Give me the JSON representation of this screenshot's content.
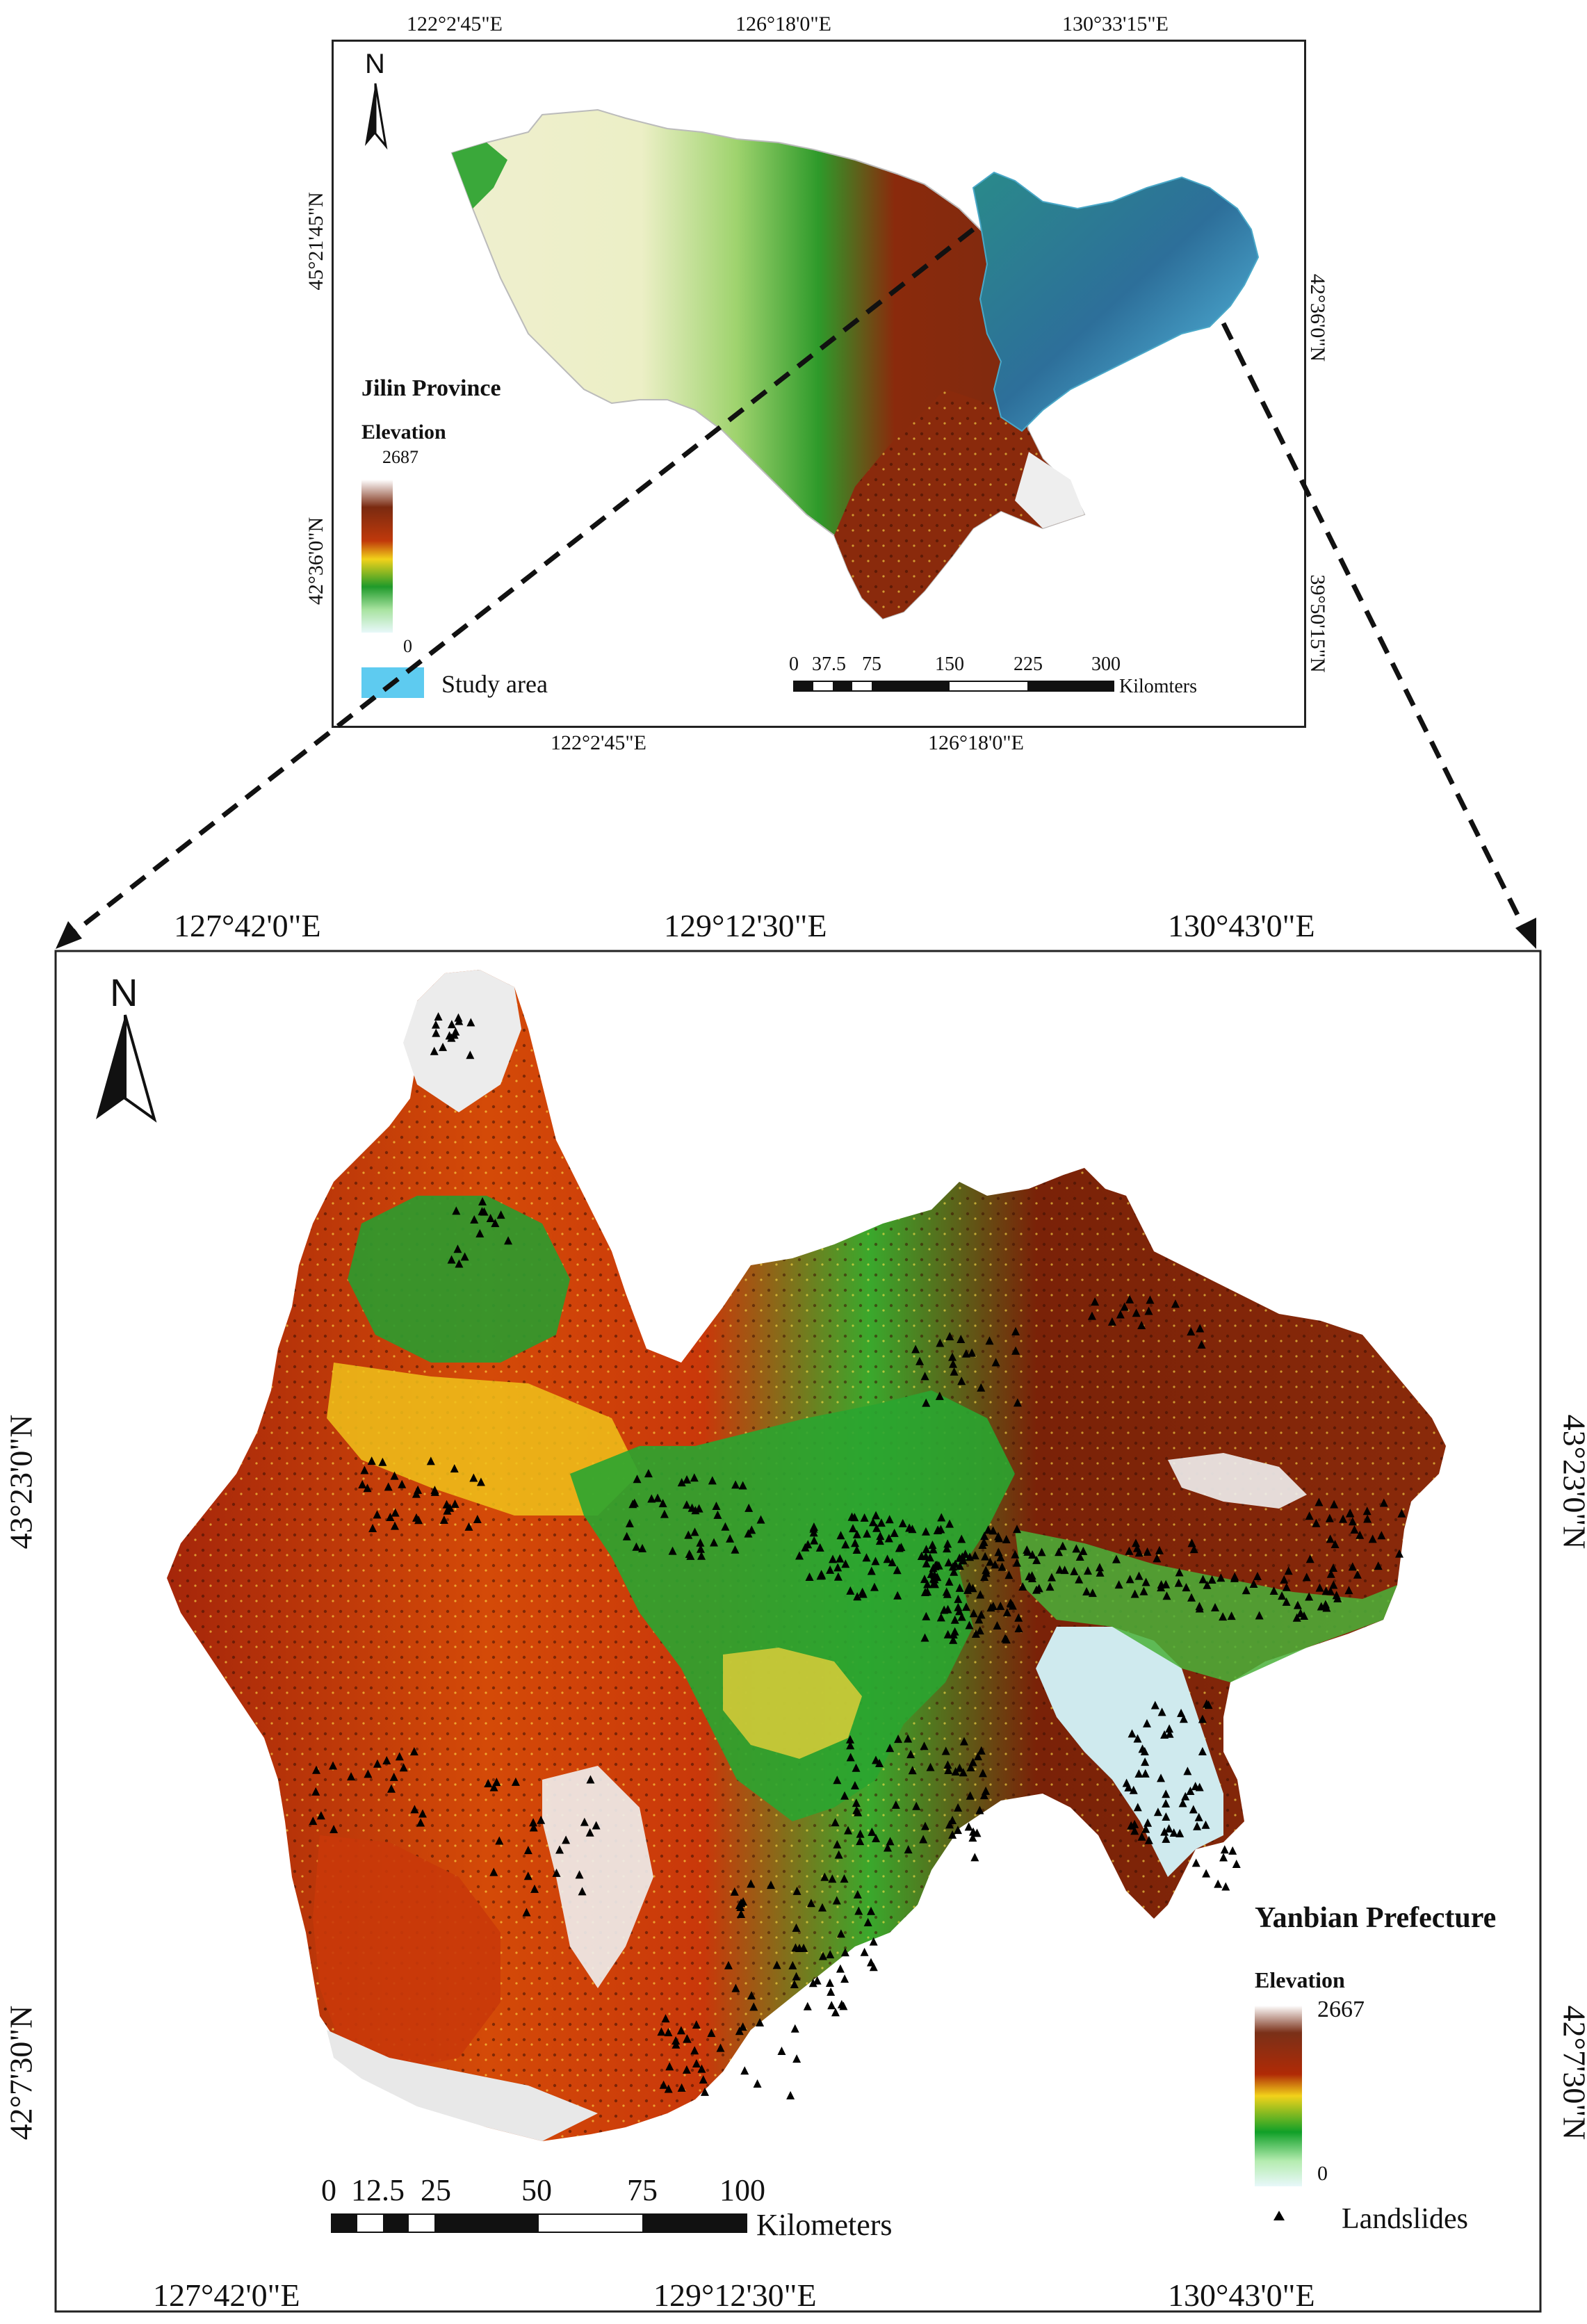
{
  "inset": {
    "north_label": "N",
    "title": "Jilin Province",
    "elevation_label": "Elevation",
    "elev_max": "2687",
    "elev_min": "0",
    "study_area_label": "Study area",
    "top_lon": [
      "122°2'45\"E",
      "126°18'0\"E",
      "130°33'15\"E"
    ],
    "bottom_lon": [
      "122°2'45\"E",
      "126°18'0\"E"
    ],
    "left_lat": [
      "45°21'45\"N",
      "42°36'0\"N"
    ],
    "right_lat": [
      "42°36'0\"N",
      "39°50'15\"N"
    ],
    "scale_ticks": [
      "0",
      "37.5",
      "75",
      "150",
      "225",
      "300"
    ],
    "scale_unit": "Kilomters",
    "colors": {
      "study_area": "#5ecbf0",
      "lowland": "#eeeecb"
    }
  },
  "main": {
    "north_label": "N",
    "title": "Yanbian Prefecture",
    "elevation_label": "Elevation",
    "elev_max": "2667",
    "elev_min": "0",
    "landslides_label": "Landslides",
    "top_lon": [
      "127°42'0\"E",
      "129°12'30\"E",
      "130°43'0\"E"
    ],
    "bottom_lon": [
      "127°42'0\"E",
      "129°12'30\"E",
      "130°43'0\"E"
    ],
    "left_lat": [
      "43°23'0\"N",
      "42°7'30\"N"
    ],
    "right_lat": [
      "43°23'0\"N",
      "42°7'30\"N"
    ],
    "scale_ticks": [
      "0",
      "12.5",
      "25",
      "50",
      "75",
      "100"
    ],
    "scale_unit": "Kilometers",
    "colors": {
      "high": "#7a1e05",
      "mid": "#d94a00",
      "yellow": "#f2d21a",
      "green": "#2fa52a",
      "low": "#cfeef2"
    }
  }
}
